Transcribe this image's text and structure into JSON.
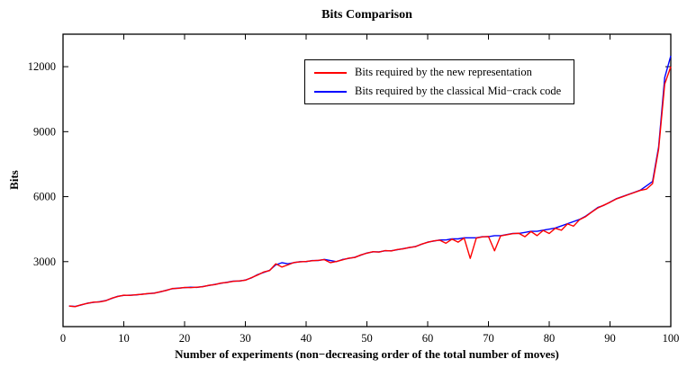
{
  "chart_data": {
    "type": "line",
    "title": "Bits Comparison",
    "xlabel": "Number of experiments (non−decreasing order of the total number of moves)",
    "ylabel": "Bits",
    "xlim": [
      0,
      100
    ],
    "ylim": [
      0,
      13500
    ],
    "xticks": [
      0,
      10,
      20,
      30,
      40,
      50,
      60,
      70,
      80,
      90,
      100
    ],
    "yticks": [
      3000,
      6000,
      9000,
      12000
    ],
    "grid": false,
    "legend_position": "top-center",
    "x": [
      1,
      2,
      3,
      4,
      5,
      6,
      7,
      8,
      9,
      10,
      11,
      12,
      13,
      14,
      15,
      16,
      17,
      18,
      19,
      20,
      21,
      22,
      23,
      24,
      25,
      26,
      27,
      28,
      29,
      30,
      31,
      32,
      33,
      34,
      35,
      36,
      37,
      38,
      39,
      40,
      41,
      42,
      43,
      44,
      45,
      46,
      47,
      48,
      49,
      50,
      51,
      52,
      53,
      54,
      55,
      56,
      57,
      58,
      59,
      60,
      61,
      62,
      63,
      64,
      65,
      66,
      67,
      68,
      69,
      70,
      71,
      72,
      73,
      74,
      75,
      76,
      77,
      78,
      79,
      80,
      81,
      82,
      83,
      84,
      85,
      86,
      87,
      88,
      89,
      90,
      91,
      92,
      93,
      94,
      95,
      96,
      97,
      98,
      99,
      100
    ],
    "series": [
      {
        "name": "Bits required by the new representation",
        "color": "#ff0000",
        "values": [
          950,
          920,
          1010,
          1070,
          1130,
          1140,
          1190,
          1310,
          1390,
          1450,
          1440,
          1470,
          1490,
          1530,
          1540,
          1610,
          1670,
          1760,
          1770,
          1810,
          1800,
          1820,
          1840,
          1910,
          1940,
          2010,
          2040,
          2090,
          2110,
          2140,
          2260,
          2380,
          2520,
          2590,
          2900,
          2750,
          2850,
          2960,
          2990,
          3010,
          3040,
          3060,
          3090,
          2950,
          3010,
          3080,
          3160,
          3190,
          3310,
          3390,
          3460,
          3440,
          3510,
          3490,
          3560,
          3590,
          3660,
          3690,
          3810,
          3890,
          3960,
          3990,
          3850,
          4040,
          3900,
          4090,
          3150,
          4090,
          4140,
          4160,
          3500,
          4190,
          4240,
          4290,
          4310,
          4150,
          4390,
          4200,
          4440,
          4300,
          4540,
          4450,
          4740,
          4640,
          4940,
          5080,
          5290,
          5480,
          5610,
          5740,
          5890,
          5990,
          6090,
          6190,
          6290,
          6350,
          6600,
          8200,
          11200,
          12000
        ]
      },
      {
        "name": "Bits required by the classical Mid−crack code",
        "color": "#0000ff",
        "values": [
          950,
          930,
          1000,
          1080,
          1120,
          1150,
          1200,
          1300,
          1400,
          1440,
          1450,
          1460,
          1500,
          1520,
          1550,
          1600,
          1680,
          1750,
          1780,
          1800,
          1820,
          1810,
          1850,
          1900,
          1950,
          2000,
          2050,
          2100,
          2100,
          2150,
          2250,
          2400,
          2500,
          2600,
          2850,
          2950,
          2900,
          2950,
          3000,
          3000,
          3050,
          3050,
          3100,
          3050,
          3000,
          3100,
          3150,
          3200,
          3300,
          3400,
          3450,
          3450,
          3500,
          3500,
          3550,
          3600,
          3650,
          3700,
          3800,
          3900,
          3950,
          4000,
          4000,
          4050,
          4050,
          4100,
          4100,
          4100,
          4150,
          4150,
          4200,
          4200,
          4250,
          4300,
          4300,
          4350,
          4400,
          4400,
          4450,
          4500,
          4550,
          4650,
          4750,
          4850,
          4950,
          5100,
          5300,
          5500,
          5600,
          5750,
          5900,
          6000,
          6100,
          6200,
          6300,
          6500,
          6700,
          8300,
          11500,
          12500
        ]
      }
    ]
  }
}
